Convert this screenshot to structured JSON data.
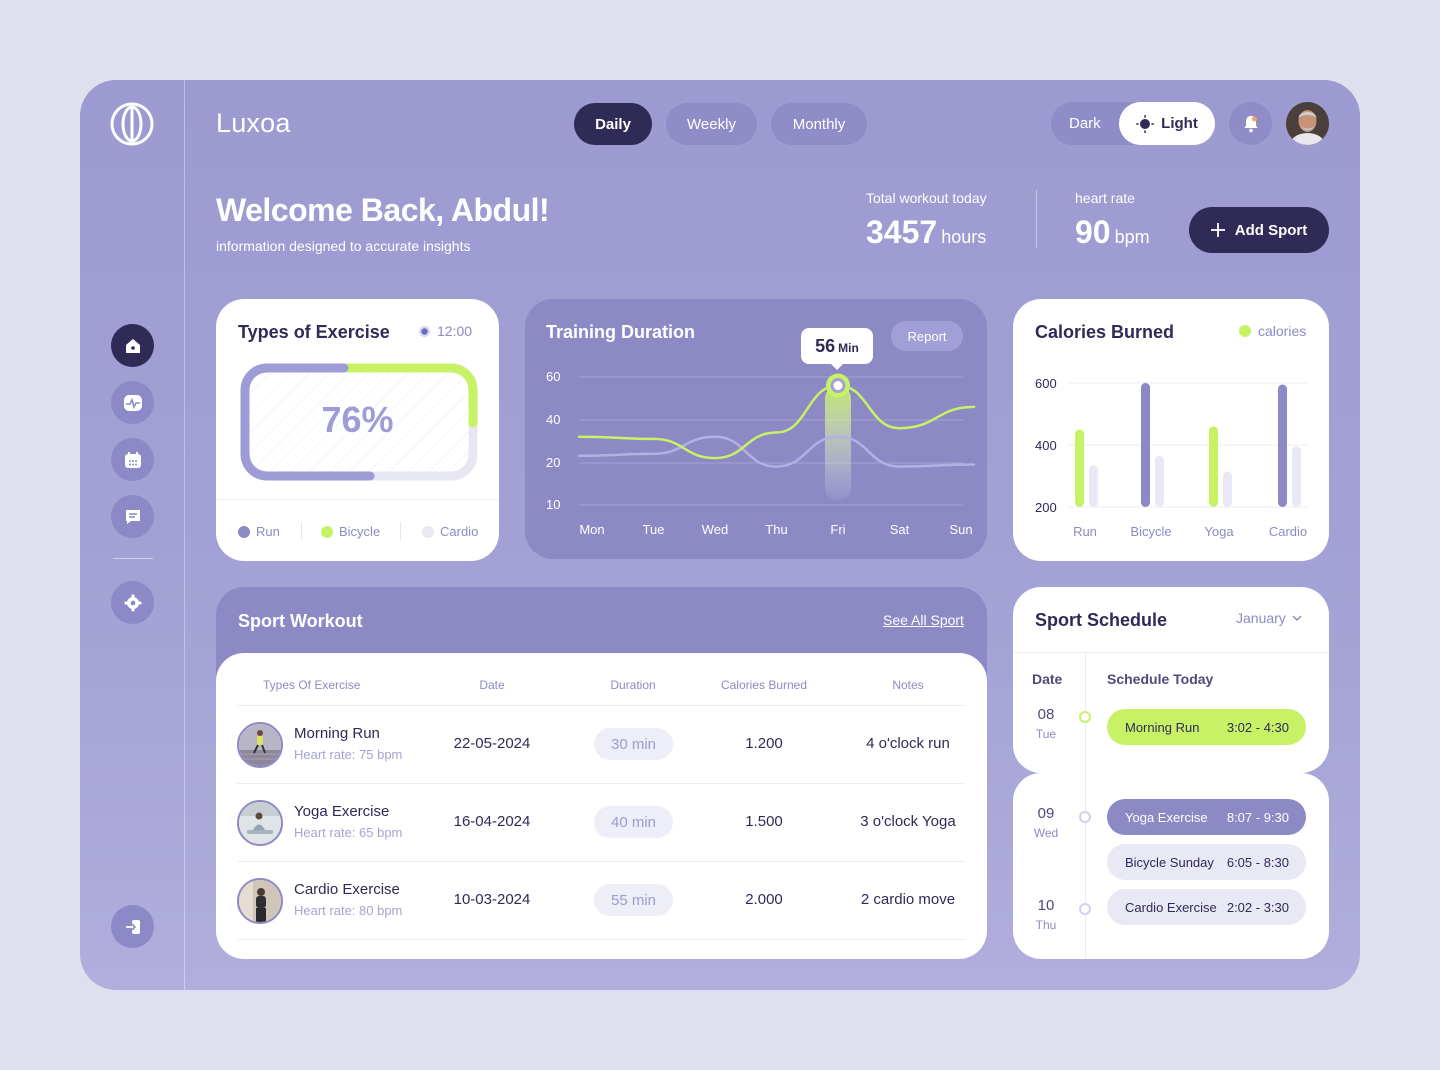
{
  "app": {
    "name": "Luxoa"
  },
  "colors": {
    "accent": "#2f2a56",
    "lime": "#c8f266",
    "violet": "#8c89c5",
    "light_violet": "#e9e8f5"
  },
  "nav": {
    "icons": [
      "home-icon",
      "activity-icon",
      "calendar-icon",
      "message-icon",
      "settings-icon",
      "logout-icon"
    ]
  },
  "periods": [
    "Daily",
    "Weekly",
    "Monthly"
  ],
  "active_period": "Daily",
  "theme": {
    "dark": "Dark",
    "light": "Light",
    "active": "Light"
  },
  "hero": {
    "title": "Welcome Back, Abdul!",
    "subtitle": "information designed to accurate insights",
    "workout_label": "Total workout today",
    "workout_value": "3457",
    "workout_unit": "hours",
    "heart_label": "heart rate",
    "heart_value": "90",
    "heart_unit": "bpm",
    "add_button": "Add Sport"
  },
  "types_card": {
    "title": "Types of Exercise",
    "time": "12:00",
    "percent": "76%",
    "legend": [
      "Run",
      "Bicycle",
      "Cardio"
    ]
  },
  "training_card": {
    "title": "Training Duration",
    "report": "Report",
    "tooltip_value": "56",
    "tooltip_unit": "Min"
  },
  "calories_card": {
    "title": "Calories Burned",
    "legend": "calories"
  },
  "chart_data": [
    {
      "type": "line",
      "x": [
        "Mon",
        "Tue",
        "Wed",
        "Thu",
        "Fri",
        "Sat",
        "Sun"
      ],
      "yticks": [
        60,
        40,
        20,
        10
      ],
      "ylim": [
        0,
        60
      ],
      "series": [
        {
          "values": [
            32,
            31,
            22,
            34,
            56,
            36,
            46
          ],
          "color": "#c8f266"
        },
        {
          "values": [
            23,
            24,
            32,
            18,
            32,
            18,
            19
          ],
          "color": "#b3b1e3"
        }
      ],
      "highlight": {
        "x": "Fri",
        "value": 56
      }
    },
    {
      "type": "bar",
      "categories": [
        "Run",
        "Bicycle",
        "Yoga",
        "Cardio"
      ],
      "yticks": [
        600,
        400,
        200
      ],
      "ylim": [
        200,
        600
      ],
      "series": [
        {
          "values": [
            450,
            600,
            460,
            595
          ]
        },
        {
          "values": [
            335,
            365,
            315,
            395
          ]
        }
      ]
    }
  ],
  "workout": {
    "title": "Sport Workout",
    "see_all": "See All Sport",
    "columns": [
      "Types Of Exercise",
      "Date",
      "Duration",
      "Calories Burned",
      "Notes"
    ],
    "rows": [
      {
        "name": "Morning Run",
        "hr": "Heart rate: 75 bpm",
        "date": "22-05-2024",
        "duration": "30 min",
        "calories": "1.200",
        "notes": "4 o'clock run"
      },
      {
        "name": "Yoga Exercise",
        "hr": "Heart rate: 65 bpm",
        "date": "16-04-2024",
        "duration": "40 min",
        "calories": "1.500",
        "notes": "3 o'clock Yoga"
      },
      {
        "name": "Cardio Exercise",
        "hr": "Heart rate: 80 bpm",
        "date": "10-03-2024",
        "duration": "55 min",
        "calories": "2.000",
        "notes": "2 cardio move"
      }
    ]
  },
  "schedule": {
    "title": "Sport Schedule",
    "month": "January",
    "date_header": "Date",
    "today_header": "Schedule Today",
    "days": [
      {
        "num": "08",
        "name": "Tue"
      },
      {
        "num": "09",
        "name": "Wed"
      },
      {
        "num": "10",
        "name": "Thu"
      }
    ],
    "events": [
      {
        "name": "Morning Run",
        "time": "3:02 - 4:30"
      },
      {
        "name": "Yoga Exercise",
        "time": "8:07 - 9:30"
      },
      {
        "name": "Bicycle Sunday",
        "time": "6:05 - 8:30"
      },
      {
        "name": "Cardio Exercise",
        "time": "2:02 - 3:30"
      }
    ]
  }
}
